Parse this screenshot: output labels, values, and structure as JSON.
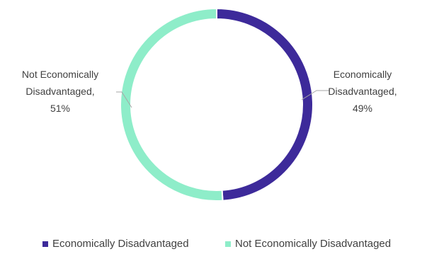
{
  "chart_data": {
    "type": "pie",
    "title": "",
    "donut": true,
    "legend_position": "bottom",
    "slices": [
      {
        "name": "Economically Disadvantaged",
        "value": 49,
        "label_lines": [
          "Economically",
          "Disadvantaged,",
          "49%"
        ],
        "color": "#3d2a9a"
      },
      {
        "name": "Not Economically Disadvantaged",
        "value": 51,
        "label_lines": [
          "Not Economically",
          "Disadvantaged,",
          "51%"
        ],
        "color": "#8eedc9"
      }
    ],
    "legend": [
      {
        "label": "Economically Disadvantaged",
        "color": "#3d2a9a"
      },
      {
        "label": "Not Economically Disadvantaged",
        "color": "#8eedc9"
      }
    ]
  }
}
